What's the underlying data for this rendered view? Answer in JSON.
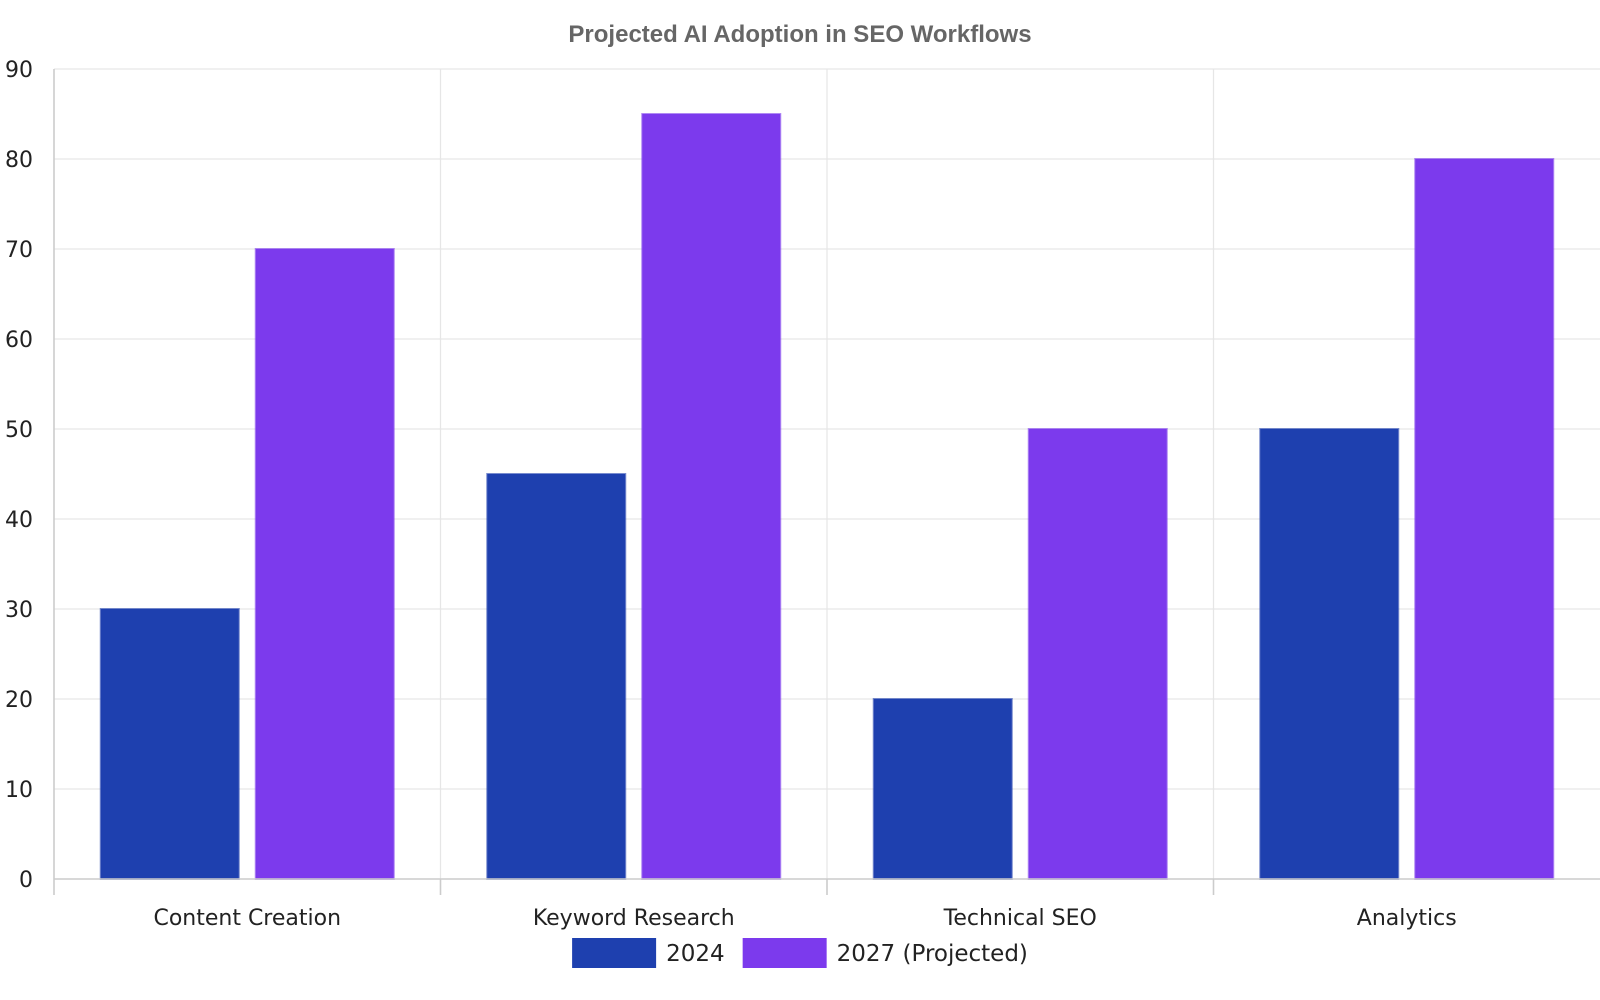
{
  "chart_data": {
    "type": "bar",
    "title": "Projected AI Adoption in SEO Workflows",
    "xlabel": "",
    "ylabel": "",
    "categories": [
      "Content Creation",
      "Keyword Research",
      "Technical SEO",
      "Analytics"
    ],
    "series": [
      {
        "name": "2024",
        "values": [
          30,
          45,
          20,
          50
        ],
        "color": "#1e40af"
      },
      {
        "name": "2027 (Projected)",
        "values": [
          70,
          85,
          50,
          80
        ],
        "color": "#7c3aed"
      }
    ],
    "ylim": [
      0,
      90
    ],
    "yticks": [
      0,
      10,
      20,
      30,
      40,
      50,
      60,
      70,
      80,
      90
    ],
    "grid": true,
    "legend_position": "bottom-center"
  }
}
